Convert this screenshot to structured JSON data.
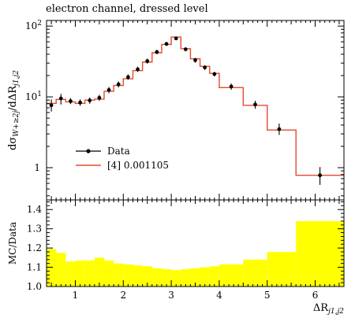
{
  "title": "electron channel, dressed level",
  "chart_data": [
    {
      "type": "line",
      "panel": "main",
      "yscale": "log",
      "xlim": [
        0.4,
        6.6
      ],
      "ylim": [
        0.35,
        120
      ],
      "ylabel_main": "dσ",
      "ylabel_sub": "W+≥2j",
      "ylabel_tail": "/dΔR",
      "ylabel_sub2": "j1,j2",
      "yticks": [
        {
          "v": 1,
          "label": "1"
        },
        {
          "v": 10,
          "label": "10",
          "exp": "1"
        },
        {
          "v": 100,
          "label": "10",
          "exp": "2"
        }
      ],
      "legend": {
        "position": "lower-left",
        "entries": [
          {
            "name": "Data",
            "style": "marker"
          },
          {
            "name": "[4] 0.001105",
            "style": "line"
          }
        ]
      },
      "series": [
        {
          "name": "Data",
          "points": [
            {
              "x": 0.5,
              "y": 7.6,
              "lo": 6.2,
              "hi": 9.2
            },
            {
              "x": 0.7,
              "y": 9.5,
              "lo": 7.8,
              "hi": 11.0
            },
            {
              "x": 0.9,
              "y": 8.7,
              "lo": 7.9,
              "hi": 9.6
            },
            {
              "x": 1.1,
              "y": 8.3,
              "lo": 7.5,
              "hi": 9.2
            },
            {
              "x": 1.3,
              "y": 8.9,
              "lo": 8.0,
              "hi": 9.8
            },
            {
              "x": 1.5,
              "y": 9.7,
              "lo": 8.8,
              "hi": 10.7
            },
            {
              "x": 1.7,
              "y": 12.5,
              "lo": 11.3,
              "hi": 13.8
            },
            {
              "x": 1.9,
              "y": 15.0,
              "lo": 13.6,
              "hi": 16.5
            },
            {
              "x": 2.1,
              "y": 19.0,
              "lo": 17.4,
              "hi": 20.8
            },
            {
              "x": 2.3,
              "y": 24.5,
              "lo": 22.5,
              "hi": 26.7
            },
            {
              "x": 2.5,
              "y": 32.0,
              "lo": 29.5,
              "hi": 34.7
            },
            {
              "x": 2.7,
              "y": 43.0,
              "lo": 40.0,
              "hi": 46.0
            },
            {
              "x": 2.9,
              "y": 56.0,
              "lo": 52.5,
              "hi": 59.5
            },
            {
              "x": 3.1,
              "y": 67.0,
              "lo": 63.0,
              "hi": 71.0
            },
            {
              "x": 3.3,
              "y": 47.0,
              "lo": 44.0,
              "hi": 50.0
            },
            {
              "x": 3.5,
              "y": 33.0,
              "lo": 30.5,
              "hi": 35.5
            },
            {
              "x": 3.7,
              "y": 26.0,
              "lo": 24.0,
              "hi": 28.0
            },
            {
              "x": 3.9,
              "y": 21.0,
              "lo": 19.5,
              "hi": 22.5
            },
            {
              "x": 4.25,
              "y": 14.0,
              "lo": 12.6,
              "hi": 15.4
            },
            {
              "x": 4.75,
              "y": 7.8,
              "lo": 6.8,
              "hi": 8.8
            },
            {
              "x": 5.25,
              "y": 3.5,
              "lo": 2.9,
              "hi": 4.2
            },
            {
              "x": 6.1,
              "y": 0.78,
              "lo": 0.57,
              "hi": 1.02
            }
          ]
        },
        {
          "name": "[4] 0.001105",
          "color": "#e34a2e",
          "bins": [
            {
              "x0": 0.4,
              "x1": 0.6,
              "y": 8.1
            },
            {
              "x0": 0.6,
              "x1": 0.8,
              "y": 9.2
            },
            {
              "x0": 0.8,
              "x1": 1.0,
              "y": 8.5
            },
            {
              "x0": 1.0,
              "x1": 1.2,
              "y": 8.1
            },
            {
              "x0": 1.2,
              "x1": 1.4,
              "y": 9.0
            },
            {
              "x0": 1.4,
              "x1": 1.6,
              "y": 9.3
            },
            {
              "x0": 1.6,
              "x1": 1.8,
              "y": 12.0
            },
            {
              "x0": 1.8,
              "x1": 2.0,
              "y": 14.5
            },
            {
              "x0": 2.0,
              "x1": 2.2,
              "y": 18.0
            },
            {
              "x0": 2.2,
              "x1": 2.4,
              "y": 23.5
            },
            {
              "x0": 2.4,
              "x1": 2.6,
              "y": 31.0
            },
            {
              "x0": 2.6,
              "x1": 2.8,
              "y": 42.0
            },
            {
              "x0": 2.8,
              "x1": 3.0,
              "y": 55.0
            },
            {
              "x0": 3.0,
              "x1": 3.2,
              "y": 70.0
            },
            {
              "x0": 3.2,
              "x1": 3.4,
              "y": 48.0
            },
            {
              "x0": 3.4,
              "x1": 3.6,
              "y": 34.5
            },
            {
              "x0": 3.6,
              "x1": 3.8,
              "y": 27.0
            },
            {
              "x0": 3.8,
              "x1": 4.0,
              "y": 21.5
            },
            {
              "x0": 4.0,
              "x1": 4.5,
              "y": 13.5
            },
            {
              "x0": 4.5,
              "x1": 5.0,
              "y": 7.6
            },
            {
              "x0": 5.0,
              "x1": 5.6,
              "y": 3.4
            },
            {
              "x0": 5.6,
              "x1": 6.6,
              "y": 0.78
            }
          ]
        }
      ]
    },
    {
      "type": "area",
      "panel": "ratio",
      "xlim": [
        0.4,
        6.6
      ],
      "ylim": [
        1.0,
        1.45
      ],
      "ylabel": "MC/Data",
      "xlabel": "ΔR",
      "xlabel_sub": "j1,j2",
      "xticks": [
        1,
        2,
        3,
        4,
        5,
        6
      ],
      "yticks": [
        "1.0",
        "1.1",
        "1.2",
        "1.3",
        "1.4"
      ],
      "band_color": "#ffff00",
      "bins": [
        {
          "x0": 0.4,
          "x1": 0.6,
          "y": 1.195
        },
        {
          "x0": 0.6,
          "x1": 0.8,
          "y": 1.175
        },
        {
          "x0": 0.8,
          "x1": 1.0,
          "y": 1.13
        },
        {
          "x0": 1.0,
          "x1": 1.2,
          "y": 1.135
        },
        {
          "x0": 1.2,
          "x1": 1.4,
          "y": 1.135
        },
        {
          "x0": 1.4,
          "x1": 1.6,
          "y": 1.15
        },
        {
          "x0": 1.6,
          "x1": 1.8,
          "y": 1.135
        },
        {
          "x0": 1.8,
          "x1": 2.0,
          "y": 1.12
        },
        {
          "x0": 2.0,
          "x1": 2.2,
          "y": 1.115
        },
        {
          "x0": 2.2,
          "x1": 2.4,
          "y": 1.11
        },
        {
          "x0": 2.4,
          "x1": 2.6,
          "y": 1.105
        },
        {
          "x0": 2.6,
          "x1": 2.8,
          "y": 1.095
        },
        {
          "x0": 2.8,
          "x1": 3.0,
          "y": 1.09
        },
        {
          "x0": 3.0,
          "x1": 3.2,
          "y": 1.085
        },
        {
          "x0": 3.2,
          "x1": 3.4,
          "y": 1.09
        },
        {
          "x0": 3.4,
          "x1": 3.6,
          "y": 1.095
        },
        {
          "x0": 3.6,
          "x1": 3.8,
          "y": 1.1
        },
        {
          "x0": 3.8,
          "x1": 4.0,
          "y": 1.105
        },
        {
          "x0": 4.0,
          "x1": 4.5,
          "y": 1.115
        },
        {
          "x0": 4.5,
          "x1": 5.0,
          "y": 1.14
        },
        {
          "x0": 5.0,
          "x1": 5.6,
          "y": 1.18
        },
        {
          "x0": 5.6,
          "x1": 6.6,
          "y": 1.34
        }
      ]
    }
  ]
}
